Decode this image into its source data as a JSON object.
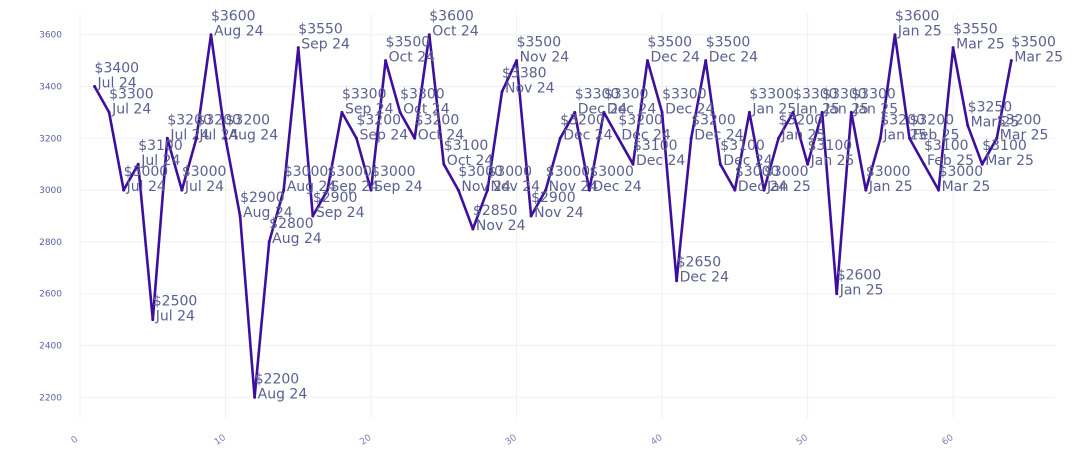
{
  "chart_data": {
    "type": "line",
    "title": "",
    "xlabel": "",
    "ylabel": "",
    "xlim": [
      0,
      67
    ],
    "ylim": [
      2120,
      3680
    ],
    "x_ticks": [
      0,
      10,
      20,
      30,
      40,
      50,
      60
    ],
    "y_ticks": [
      2200,
      2400,
      2600,
      2800,
      3000,
      3200,
      3400,
      3600
    ],
    "grid": true,
    "legend": "none",
    "colors": {
      "line": "#3d0f9e",
      "labels": "#5b6190",
      "ticks": "#5b63a6"
    },
    "series": [
      {
        "points": [
          {
            "x": 1,
            "y": 3400,
            "price": "$3400",
            "month": "Jul 24"
          },
          {
            "x": 2,
            "y": 3300,
            "price": "$3300",
            "month": "Jul 24"
          },
          {
            "x": 3,
            "y": 3000,
            "price": "$3000",
            "month": "Jul 24"
          },
          {
            "x": 4,
            "y": 3100,
            "price": "$3100",
            "month": "Jul 24"
          },
          {
            "x": 5,
            "y": 2500,
            "price": "$2500",
            "month": "Jul 24"
          },
          {
            "x": 6,
            "y": 3200,
            "price": "$3200",
            "month": "Jul 24"
          },
          {
            "x": 7,
            "y": 3000,
            "price": "$3000",
            "month": "Jul 24"
          },
          {
            "x": 8,
            "y": 3200,
            "price": "$3200",
            "month": "Jul 24"
          },
          {
            "x": 9,
            "y": 3600,
            "price": "$3600",
            "month": "Aug 24"
          },
          {
            "x": 10,
            "y": 3200,
            "price": "$3200",
            "month": "Aug 24"
          },
          {
            "x": 11,
            "y": 2900,
            "price": "$2900",
            "month": "Aug 24"
          },
          {
            "x": 12,
            "y": 2200,
            "price": "$2200",
            "month": "Aug 24"
          },
          {
            "x": 13,
            "y": 2800,
            "price": "$2800",
            "month": "Aug 24"
          },
          {
            "x": 14,
            "y": 3000,
            "price": "$3000",
            "month": "Aug 24"
          },
          {
            "x": 15,
            "y": 3550,
            "price": "$3550",
            "month": "Sep 24"
          },
          {
            "x": 16,
            "y": 2900,
            "price": "$2900",
            "month": "Sep 24"
          },
          {
            "x": 17,
            "y": 3000,
            "price": "$3000",
            "month": "Sep 24"
          },
          {
            "x": 18,
            "y": 3300,
            "price": "$3300",
            "month": "Sep 24"
          },
          {
            "x": 19,
            "y": 3200,
            "price": "$3200",
            "month": "Sep 24"
          },
          {
            "x": 20,
            "y": 3000,
            "price": "$3000",
            "month": "Sep 24"
          },
          {
            "x": 21,
            "y": 3500,
            "price": "$3500",
            "month": "Oct 24"
          },
          {
            "x": 22,
            "y": 3300,
            "price": "$3300",
            "month": "Oct 24"
          },
          {
            "x": 23,
            "y": 3200,
            "price": "$3200",
            "month": "Oct 24"
          },
          {
            "x": 24,
            "y": 3600,
            "price": "$3600",
            "month": "Oct 24"
          },
          {
            "x": 25,
            "y": 3100,
            "price": "$3100",
            "month": "Oct 24"
          },
          {
            "x": 26,
            "y": 3000,
            "price": "$3000",
            "month": "Nov 24"
          },
          {
            "x": 27,
            "y": 2850,
            "price": "$2850",
            "month": "Nov 24"
          },
          {
            "x": 28,
            "y": 3000,
            "price": "$3000",
            "month": "Nov 24"
          },
          {
            "x": 29,
            "y": 3380,
            "price": "$3380",
            "month": "Nov 24"
          },
          {
            "x": 30,
            "y": 3500,
            "price": "$3500",
            "month": "Nov 24"
          },
          {
            "x": 31,
            "y": 2900,
            "price": "$2900",
            "month": "Nov 24"
          },
          {
            "x": 32,
            "y": 3000,
            "price": "$3000",
            "month": "Nov 24"
          },
          {
            "x": 33,
            "y": 3200,
            "price": "$3200",
            "month": "Dec 24"
          },
          {
            "x": 34,
            "y": 3300,
            "price": "$3300",
            "month": "Dec 24"
          },
          {
            "x": 35,
            "y": 3000,
            "price": "$3000",
            "month": "Dec 24"
          },
          {
            "x": 36,
            "y": 3300,
            "price": "$3300",
            "month": "Dec 24"
          },
          {
            "x": 37,
            "y": 3200,
            "price": "$3200",
            "month": "Dec 24"
          },
          {
            "x": 38,
            "y": 3100,
            "price": "$3100",
            "month": "Dec 24"
          },
          {
            "x": 39,
            "y": 3500,
            "price": "$3500",
            "month": "Dec 24"
          },
          {
            "x": 40,
            "y": 3300,
            "price": "$3300",
            "month": "Dec 24"
          },
          {
            "x": 41,
            "y": 2650,
            "price": "$2650",
            "month": "Dec 24"
          },
          {
            "x": 42,
            "y": 3200,
            "price": "$3200",
            "month": "Dec 24"
          },
          {
            "x": 43,
            "y": 3500,
            "price": "$3500",
            "month": "Dec 24"
          },
          {
            "x": 44,
            "y": 3100,
            "price": "$3100",
            "month": "Dec 24"
          },
          {
            "x": 45,
            "y": 3000,
            "price": "$3000",
            "month": "Dec 24"
          },
          {
            "x": 46,
            "y": 3300,
            "price": "$3300",
            "month": "Jan 25"
          },
          {
            "x": 47,
            "y": 3000,
            "price": "$3000",
            "month": "Jan 25"
          },
          {
            "x": 48,
            "y": 3200,
            "price": "$3200",
            "month": "Jan 25"
          },
          {
            "x": 49,
            "y": 3300,
            "price": "$3300",
            "month": "Jan 25"
          },
          {
            "x": 50,
            "y": 3100,
            "price": "$3100",
            "month": "Jan 25"
          },
          {
            "x": 51,
            "y": 3300,
            "price": "$3300",
            "month": "Jan 25"
          },
          {
            "x": 52,
            "y": 2600,
            "price": "$2600",
            "month": "Jan 25"
          },
          {
            "x": 53,
            "y": 3300,
            "price": "$3300",
            "month": "Jan 25"
          },
          {
            "x": 54,
            "y": 3000,
            "price": "$3000",
            "month": "Jan 25"
          },
          {
            "x": 55,
            "y": 3200,
            "price": "$3200",
            "month": "Jan 25"
          },
          {
            "x": 56,
            "y": 3600,
            "price": "$3600",
            "month": "Jan 25"
          },
          {
            "x": 57,
            "y": 3200,
            "price": "$3200",
            "month": "Feb 25"
          },
          {
            "x": 58,
            "y": 3100,
            "price": "$3100",
            "month": "Feb 25"
          },
          {
            "x": 59,
            "y": 3000,
            "price": "$3000",
            "month": "Mar 25"
          },
          {
            "x": 60,
            "y": 3550,
            "price": "$3550",
            "month": "Mar 25"
          },
          {
            "x": 61,
            "y": 3250,
            "price": "$3250",
            "month": "Mar 25"
          },
          {
            "x": 62,
            "y": 3100,
            "price": "$3100",
            "month": "Mar 25"
          },
          {
            "x": 63,
            "y": 3200,
            "price": "$3200",
            "month": "Mar 25"
          },
          {
            "x": 64,
            "y": 3500,
            "price": "$3500",
            "month": "Mar 25"
          }
        ]
      }
    ]
  }
}
